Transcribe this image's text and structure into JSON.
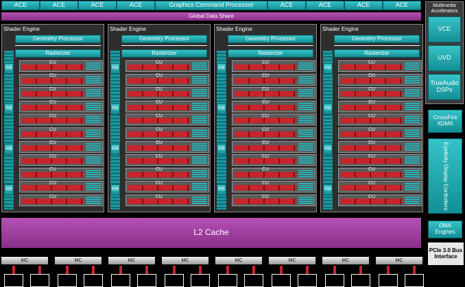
{
  "top_bar": {
    "ace_left": [
      "ACE",
      "ACE",
      "ACE",
      "ACE"
    ],
    "command_processor": "Graphics Command Processor",
    "ace_right": [
      "ACE",
      "ACE",
      "ACE",
      "ACE"
    ]
  },
  "global_data_share": "Global Data Share",
  "shader_engines": [
    {
      "title": "Shader Engine",
      "geometry_processor": "Geometry Processor",
      "rasterizer": "Rasterizer",
      "render_backends": [
        "RB",
        "RB",
        "RB",
        "RB"
      ],
      "compute_units": [
        "CU",
        "CU",
        "CU",
        "CU",
        "CU",
        "CU",
        "CU",
        "CU",
        "CU",
        "CU",
        "CU"
      ]
    },
    {
      "title": "Shader Engine",
      "geometry_processor": "Geometry Processor",
      "rasterizer": "Rasterizer",
      "render_backends": [
        "RB",
        "RB",
        "RB",
        "RB"
      ],
      "compute_units": [
        "CU",
        "CU",
        "CU",
        "CU",
        "CU",
        "CU",
        "CU",
        "CU",
        "CU",
        "CU",
        "CU"
      ]
    },
    {
      "title": "Shader Engine",
      "geometry_processor": "Geometry Processor",
      "rasterizer": "Rasterizer",
      "render_backends": [
        "RB",
        "RB",
        "RB",
        "RB"
      ],
      "compute_units": [
        "CU",
        "CU",
        "CU",
        "CU",
        "CU",
        "CU",
        "CU",
        "CU",
        "CU",
        "CU",
        "CU"
      ]
    },
    {
      "title": "Shader Engine",
      "geometry_processor": "Geometry Processor",
      "rasterizer": "Rasterizer",
      "render_backends": [
        "RB",
        "RB",
        "RB",
        "RB"
      ],
      "compute_units": [
        "CU",
        "CU",
        "CU",
        "CU",
        "CU",
        "CU",
        "CU",
        "CU",
        "CU",
        "CU",
        "CU"
      ]
    }
  ],
  "l2_cache": "L2 Cache",
  "memory_controllers": [
    "MC",
    "MC",
    "MC",
    "MC",
    "MC",
    "MC",
    "MC",
    "MC"
  ],
  "sidebar": {
    "multimedia_title": "Multimedia Accelerators",
    "multimedia": [
      "VCE",
      "UVD",
      "TrueAudio DSPs"
    ],
    "crossfire": "CrossFire XDMA",
    "eyefinity": "Eyefinity Display Controllers",
    "dma": "DMA Engines",
    "pcie": "PCIe 3.0 Bus Interface"
  }
}
